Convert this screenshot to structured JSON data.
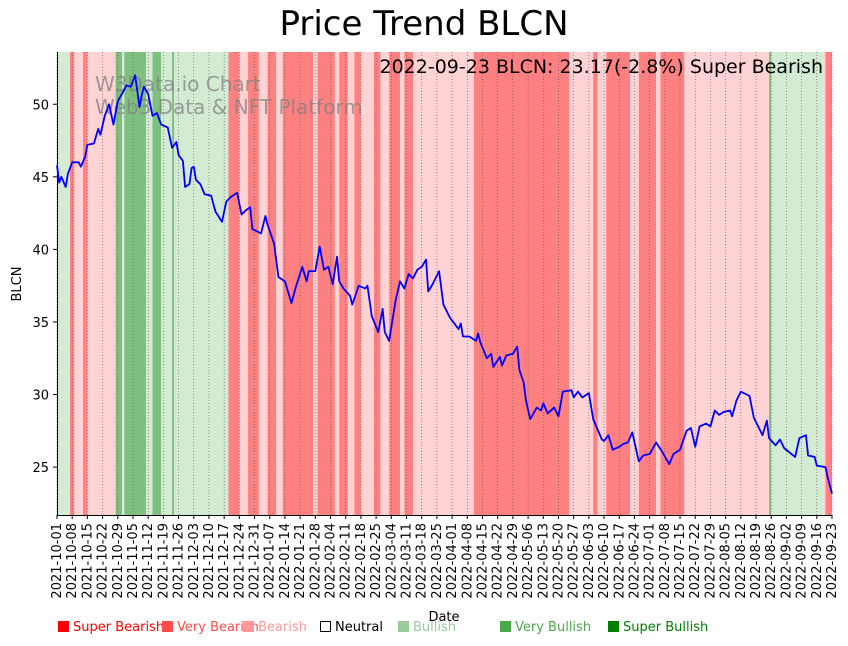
{
  "page": {
    "title": "Price Trend BLCN"
  },
  "chart_data": {
    "type": "line",
    "title": "Price Trend BLCN",
    "annotation": "2022-09-23 BLCN: 23.17(-2.8%) Super Bearish",
    "watermark": [
      "W3Data.io Chart",
      "Web3 Data & NFT Platform"
    ],
    "xlabel": "Date",
    "ylabel": "BLCN",
    "ylim": [
      21.7,
      53.6
    ],
    "yticks": [
      25,
      30,
      35,
      40,
      45,
      50
    ],
    "xrange": [
      "2021-10-01",
      "2022-09-23"
    ],
    "xticks": [
      "2021-10-01",
      "2021-10-08",
      "2021-10-15",
      "2021-10-22",
      "2021-10-29",
      "2021-11-05",
      "2021-11-12",
      "2021-11-19",
      "2021-11-26",
      "2021-12-03",
      "2021-12-10",
      "2021-12-17",
      "2021-12-24",
      "2021-12-31",
      "2022-01-07",
      "2022-01-14",
      "2022-01-21",
      "2022-01-28",
      "2022-02-04",
      "2022-02-11",
      "2022-02-18",
      "2022-02-25",
      "2022-03-04",
      "2022-03-11",
      "2022-03-18",
      "2022-03-25",
      "2022-04-01",
      "2022-04-08",
      "2022-04-15",
      "2022-04-22",
      "2022-04-29",
      "2022-05-06",
      "2022-05-13",
      "2022-05-20",
      "2022-05-27",
      "2022-06-03",
      "2022-06-10",
      "2022-06-17",
      "2022-06-24",
      "2022-07-01",
      "2022-07-08",
      "2022-07-15",
      "2022-07-22",
      "2022-07-29",
      "2022-08-05",
      "2022-08-12",
      "2022-08-19",
      "2022-08-26",
      "2022-09-02",
      "2022-09-09",
      "2022-09-16",
      "2022-09-23"
    ],
    "series": [
      {
        "name": "BLCN",
        "color": "#0000ff",
        "points": [
          [
            "2021-10-01",
            45.8
          ],
          [
            "2021-10-02",
            44.6
          ],
          [
            "2021-10-03",
            45.0
          ],
          [
            "2021-10-05",
            44.3
          ],
          [
            "2021-10-06",
            45.2
          ],
          [
            "2021-10-08",
            46.0
          ],
          [
            "2021-10-11",
            46.0
          ],
          [
            "2021-10-12",
            45.7
          ],
          [
            "2021-10-14",
            46.4
          ],
          [
            "2021-10-15",
            47.2
          ],
          [
            "2021-10-18",
            47.3
          ],
          [
            "2021-10-20",
            48.3
          ],
          [
            "2021-10-21",
            47.9
          ],
          [
            "2021-10-23",
            49.2
          ],
          [
            "2021-10-25",
            50.0
          ],
          [
            "2021-10-27",
            48.6
          ],
          [
            "2021-10-29",
            50.2
          ],
          [
            "2021-11-01",
            51.0
          ],
          [
            "2021-11-02",
            51.3
          ],
          [
            "2021-11-04",
            51.2
          ],
          [
            "2021-11-06",
            52.0
          ],
          [
            "2021-11-08",
            49.8
          ],
          [
            "2021-11-09",
            50.6
          ],
          [
            "2021-11-10",
            51.2
          ],
          [
            "2021-11-12",
            50.7
          ],
          [
            "2021-11-14",
            49.2
          ],
          [
            "2021-11-16",
            49.4
          ],
          [
            "2021-11-18",
            48.6
          ],
          [
            "2021-11-21",
            48.4
          ],
          [
            "2021-11-23",
            47.0
          ],
          [
            "2021-11-25",
            47.4
          ],
          [
            "2021-11-26",
            46.5
          ],
          [
            "2021-11-28",
            46.1
          ],
          [
            "2021-11-29",
            44.3
          ],
          [
            "2021-12-01",
            44.5
          ],
          [
            "2021-12-02",
            45.6
          ],
          [
            "2021-12-03",
            45.7
          ],
          [
            "2021-12-04",
            44.8
          ],
          [
            "2021-12-06",
            44.5
          ],
          [
            "2021-12-08",
            43.8
          ],
          [
            "2021-12-11",
            43.7
          ],
          [
            "2021-12-13",
            42.6
          ],
          [
            "2021-12-16",
            41.9
          ],
          [
            "2021-12-18",
            43.3
          ],
          [
            "2021-12-20",
            43.6
          ],
          [
            "2021-12-23",
            43.9
          ],
          [
            "2021-12-25",
            42.4
          ],
          [
            "2021-12-27",
            42.7
          ],
          [
            "2021-12-29",
            42.9
          ],
          [
            "2021-12-30",
            41.4
          ],
          [
            "2022-01-03",
            41.1
          ],
          [
            "2022-01-05",
            42.3
          ],
          [
            "2022-01-06",
            41.7
          ],
          [
            "2022-01-09",
            40.4
          ],
          [
            "2022-01-11",
            38.1
          ],
          [
            "2022-01-14",
            37.8
          ],
          [
            "2022-01-17",
            36.3
          ],
          [
            "2022-01-19",
            37.4
          ],
          [
            "2022-01-22",
            38.8
          ],
          [
            "2022-01-24",
            37.8
          ],
          [
            "2022-01-25",
            38.5
          ],
          [
            "2022-01-28",
            38.5
          ],
          [
            "2022-01-30",
            40.2
          ],
          [
            "2022-02-01",
            38.6
          ],
          [
            "2022-02-03",
            38.8
          ],
          [
            "2022-02-05",
            37.6
          ],
          [
            "2022-02-07",
            39.5
          ],
          [
            "2022-02-08",
            37.8
          ],
          [
            "2022-02-10",
            37.3
          ],
          [
            "2022-02-13",
            36.8
          ],
          [
            "2022-02-14",
            36.2
          ],
          [
            "2022-02-17",
            37.5
          ],
          [
            "2022-02-20",
            37.3
          ],
          [
            "2022-02-21",
            37.5
          ],
          [
            "2022-02-23",
            35.4
          ],
          [
            "2022-02-26",
            34.3
          ],
          [
            "2022-02-28",
            35.9
          ],
          [
            "2022-03-01",
            34.3
          ],
          [
            "2022-03-03",
            33.7
          ],
          [
            "2022-03-06",
            36.5
          ],
          [
            "2022-03-08",
            37.8
          ],
          [
            "2022-03-10",
            37.3
          ],
          [
            "2022-03-12",
            38.3
          ],
          [
            "2022-03-14",
            38.0
          ],
          [
            "2022-03-16",
            38.6
          ],
          [
            "2022-03-18",
            38.8
          ],
          [
            "2022-03-20",
            39.3
          ],
          [
            "2022-03-21",
            37.1
          ],
          [
            "2022-03-23",
            37.6
          ],
          [
            "2022-03-26",
            38.5
          ],
          [
            "2022-03-28",
            36.2
          ],
          [
            "2022-03-31",
            35.3
          ],
          [
            "2022-04-04",
            34.5
          ],
          [
            "2022-04-05",
            34.9
          ],
          [
            "2022-04-06",
            34.0
          ],
          [
            "2022-04-09",
            34.0
          ],
          [
            "2022-04-12",
            33.7
          ],
          [
            "2022-04-13",
            34.2
          ],
          [
            "2022-04-14",
            33.6
          ],
          [
            "2022-04-17",
            32.5
          ],
          [
            "2022-04-19",
            32.8
          ],
          [
            "2022-04-20",
            31.9
          ],
          [
            "2022-04-23",
            32.6
          ],
          [
            "2022-04-24",
            32.0
          ],
          [
            "2022-04-26",
            32.7
          ],
          [
            "2022-04-29",
            32.8
          ],
          [
            "2022-05-01",
            33.3
          ],
          [
            "2022-05-02",
            31.7
          ],
          [
            "2022-05-04",
            30.8
          ],
          [
            "2022-05-05",
            29.6
          ],
          [
            "2022-05-07",
            28.3
          ],
          [
            "2022-05-10",
            29.1
          ],
          [
            "2022-05-12",
            28.9
          ],
          [
            "2022-05-13",
            29.4
          ],
          [
            "2022-05-15",
            28.7
          ],
          [
            "2022-05-18",
            29.1
          ],
          [
            "2022-05-20",
            28.5
          ],
          [
            "2022-05-22",
            30.2
          ],
          [
            "2022-05-26",
            30.3
          ],
          [
            "2022-05-27",
            29.8
          ],
          [
            "2022-05-29",
            30.2
          ],
          [
            "2022-05-31",
            29.8
          ],
          [
            "2022-06-03",
            30.1
          ],
          [
            "2022-06-05",
            28.3
          ],
          [
            "2022-06-09",
            26.9
          ],
          [
            "2022-06-10",
            26.8
          ],
          [
            "2022-06-12",
            27.2
          ],
          [
            "2022-06-14",
            26.2
          ],
          [
            "2022-06-17",
            26.4
          ],
          [
            "2022-06-19",
            26.6
          ],
          [
            "2022-06-21",
            26.7
          ],
          [
            "2022-06-23",
            27.4
          ],
          [
            "2022-06-26",
            25.4
          ],
          [
            "2022-06-28",
            25.8
          ],
          [
            "2022-07-01",
            25.9
          ],
          [
            "2022-07-04",
            26.7
          ],
          [
            "2022-07-07",
            26.0
          ],
          [
            "2022-07-10",
            25.2
          ],
          [
            "2022-07-12",
            25.9
          ],
          [
            "2022-07-15",
            26.2
          ],
          [
            "2022-07-18",
            27.5
          ],
          [
            "2022-07-20",
            27.7
          ],
          [
            "2022-07-22",
            26.4
          ],
          [
            "2022-07-24",
            27.8
          ],
          [
            "2022-07-27",
            28.0
          ],
          [
            "2022-07-29",
            27.8
          ],
          [
            "2022-07-31",
            28.9
          ],
          [
            "2022-08-02",
            28.6
          ],
          [
            "2022-08-04",
            28.8
          ],
          [
            "2022-08-07",
            28.9
          ],
          [
            "2022-08-08",
            28.5
          ],
          [
            "2022-08-10",
            29.6
          ],
          [
            "2022-08-12",
            30.2
          ],
          [
            "2022-08-16",
            29.9
          ],
          [
            "2022-08-18",
            28.4
          ],
          [
            "2022-08-22",
            27.2
          ],
          [
            "2022-08-24",
            28.2
          ],
          [
            "2022-08-25",
            27.0
          ],
          [
            "2022-08-28",
            26.5
          ],
          [
            "2022-08-30",
            26.9
          ],
          [
            "2022-09-01",
            26.3
          ],
          [
            "2022-09-06",
            25.7
          ],
          [
            "2022-09-08",
            27.0
          ],
          [
            "2022-09-11",
            27.2
          ],
          [
            "2022-09-12",
            25.8
          ],
          [
            "2022-09-15",
            25.7
          ],
          [
            "2022-09-16",
            25.1
          ],
          [
            "2022-09-20",
            25.0
          ],
          [
            "2022-09-21",
            24.3
          ],
          [
            "2022-09-23",
            23.17
          ]
        ]
      }
    ],
    "sentiment_colors": {
      "Super Bearish": "#ff8080",
      "Very Bearish": "#ff8080",
      "Bearish": "#ffd3d3",
      "Neutral": "#ffffff",
      "Bullish": "#d3ead3",
      "Very Bullish": "#7fbf7f",
      "Super Bullish": "#7fbf7f"
    },
    "sentiment_bands": [
      [
        "2021-10-01",
        "2021-10-07",
        "Bullish"
      ],
      [
        "2021-10-07",
        "2021-10-09",
        "Super Bearish"
      ],
      [
        "2021-10-09",
        "2021-10-13",
        "Bearish"
      ],
      [
        "2021-10-13",
        "2021-10-15",
        "Super Bearish"
      ],
      [
        "2021-10-15",
        "2021-10-28",
        "Bearish"
      ],
      [
        "2021-10-28",
        "2021-10-31",
        "Very Bullish"
      ],
      [
        "2021-10-31",
        "2021-11-01",
        "Bullish"
      ],
      [
        "2021-11-01",
        "2021-11-11",
        "Very Bullish"
      ],
      [
        "2021-11-11",
        "2021-11-14",
        "Bullish"
      ],
      [
        "2021-11-14",
        "2021-11-18",
        "Very Bullish"
      ],
      [
        "2021-11-18",
        "2021-11-23",
        "Bullish"
      ],
      [
        "2021-11-23",
        "2021-11-24",
        "Very Bullish"
      ],
      [
        "2021-11-24",
        "2021-12-19",
        "Bullish"
      ],
      [
        "2021-12-19",
        "2021-12-24",
        "Super Bearish"
      ],
      [
        "2021-12-24",
        "2021-12-28",
        "Bearish"
      ],
      [
        "2021-12-28",
        "2022-01-02",
        "Super Bearish"
      ],
      [
        "2022-01-02",
        "2022-01-06",
        "Bearish"
      ],
      [
        "2022-01-06",
        "2022-01-10",
        "Super Bearish"
      ],
      [
        "2022-01-10",
        "2022-01-13",
        "Bearish"
      ],
      [
        "2022-01-13",
        "2022-01-27",
        "Super Bearish"
      ],
      [
        "2022-01-27",
        "2022-01-29",
        "Bearish"
      ],
      [
        "2022-01-29",
        "2022-02-06",
        "Super Bearish"
      ],
      [
        "2022-02-06",
        "2022-02-08",
        "Bearish"
      ],
      [
        "2022-02-08",
        "2022-02-12",
        "Super Bearish"
      ],
      [
        "2022-02-12",
        "2022-02-15",
        "Bearish"
      ],
      [
        "2022-02-15",
        "2022-02-18",
        "Super Bearish"
      ],
      [
        "2022-02-18",
        "2022-02-24",
        "Bearish"
      ],
      [
        "2022-02-24",
        "2022-02-27",
        "Super Bearish"
      ],
      [
        "2022-02-27",
        "2022-03-03",
        "Bearish"
      ],
      [
        "2022-03-03",
        "2022-03-08",
        "Super Bearish"
      ],
      [
        "2022-03-08",
        "2022-03-10",
        "Bearish"
      ],
      [
        "2022-03-10",
        "2022-03-14",
        "Super Bearish"
      ],
      [
        "2022-03-14",
        "2022-04-11",
        "Bearish"
      ],
      [
        "2022-04-11",
        "2022-05-25",
        "Super Bearish"
      ],
      [
        "2022-05-25",
        "2022-06-05",
        "Bearish"
      ],
      [
        "2022-06-05",
        "2022-06-07",
        "Super Bearish"
      ],
      [
        "2022-06-07",
        "2022-06-11",
        "Bearish"
      ],
      [
        "2022-06-11",
        "2022-06-22",
        "Super Bearish"
      ],
      [
        "2022-06-22",
        "2022-06-26",
        "Bearish"
      ],
      [
        "2022-06-26",
        "2022-07-04",
        "Super Bearish"
      ],
      [
        "2022-07-04",
        "2022-07-06",
        "Bearish"
      ],
      [
        "2022-07-06",
        "2022-07-17",
        "Super Bearish"
      ],
      [
        "2022-07-17",
        "2022-08-25",
        "Bearish"
      ],
      [
        "2022-08-25",
        "2022-08-26",
        "Very Bullish"
      ],
      [
        "2022-08-26",
        "2022-09-19",
        "Bullish"
      ],
      [
        "2022-09-19",
        "2022-09-20",
        "Bearish"
      ],
      [
        "2022-09-20",
        "2022-09-23",
        "Super Bearish"
      ]
    ],
    "legend": [
      {
        "label": "Super Bearish",
        "color": "#ff0000"
      },
      {
        "label": "Very Bearish",
        "color": "#ff4d4d"
      },
      {
        "label": "Bearish",
        "color": "#ff9999"
      },
      {
        "label": "Neutral",
        "color": "#ffffff"
      },
      {
        "label": "Bullish",
        "color": "#99cc99"
      },
      {
        "label": "Very Bullish",
        "color": "#4ca64c"
      },
      {
        "label": "Super Bullish",
        "color": "#008000"
      }
    ]
  }
}
